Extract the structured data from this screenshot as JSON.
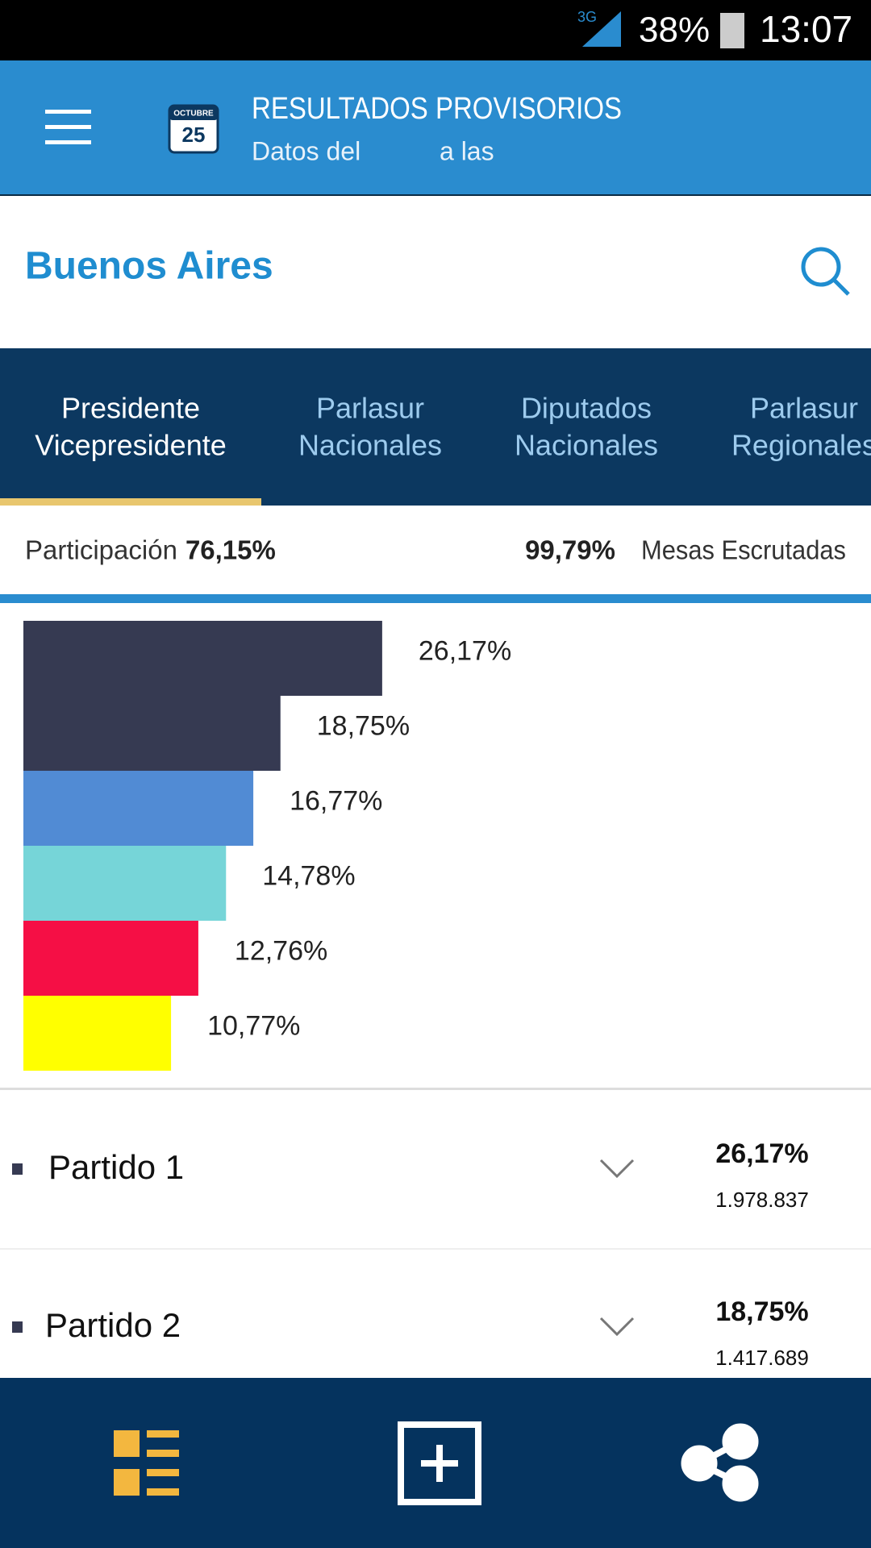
{
  "status_bar": {
    "network": "3G",
    "battery": "38%",
    "time": "13:07"
  },
  "header": {
    "title": "RESULTADOS PROVISORIOS",
    "subtitle_date": "Datos del",
    "subtitle_time": "a las",
    "calendar_month": "OCTUBRE",
    "calendar_day": "25"
  },
  "location": "Buenos Aires",
  "tabs": [
    {
      "line1": "Presidente",
      "line2": "Vicepresidente"
    },
    {
      "line1": "Parlasur",
      "line2": "Nacionales"
    },
    {
      "line1": "Diputados",
      "line2": "Nacionales"
    },
    {
      "line1": "Parlasur",
      "line2": "Regionales"
    }
  ],
  "stats": {
    "participation_label": "Participación",
    "participation": "76,15%",
    "tables_counted": "99,79%",
    "tables_label": "Mesas Escrutadas"
  },
  "chart_data": {
    "type": "bar",
    "values": [
      26.17,
      18.75,
      16.77,
      14.78,
      12.76,
      10.77
    ],
    "value_labels": [
      "26,17%",
      "18,75%",
      "16,77%",
      "14,78%",
      "12,76%",
      "10,77%"
    ],
    "colors": [
      "#363a52",
      "#363a52",
      "#518bd4",
      "#76d5d8",
      "#f50f45",
      "#ffff00"
    ]
  },
  "parties": [
    {
      "name": "Partido 1",
      "percent": "26,17%",
      "votes": "1.978.837"
    },
    {
      "name": "Partido 2",
      "percent": "18,75%",
      "votes": "1.417.689"
    }
  ]
}
